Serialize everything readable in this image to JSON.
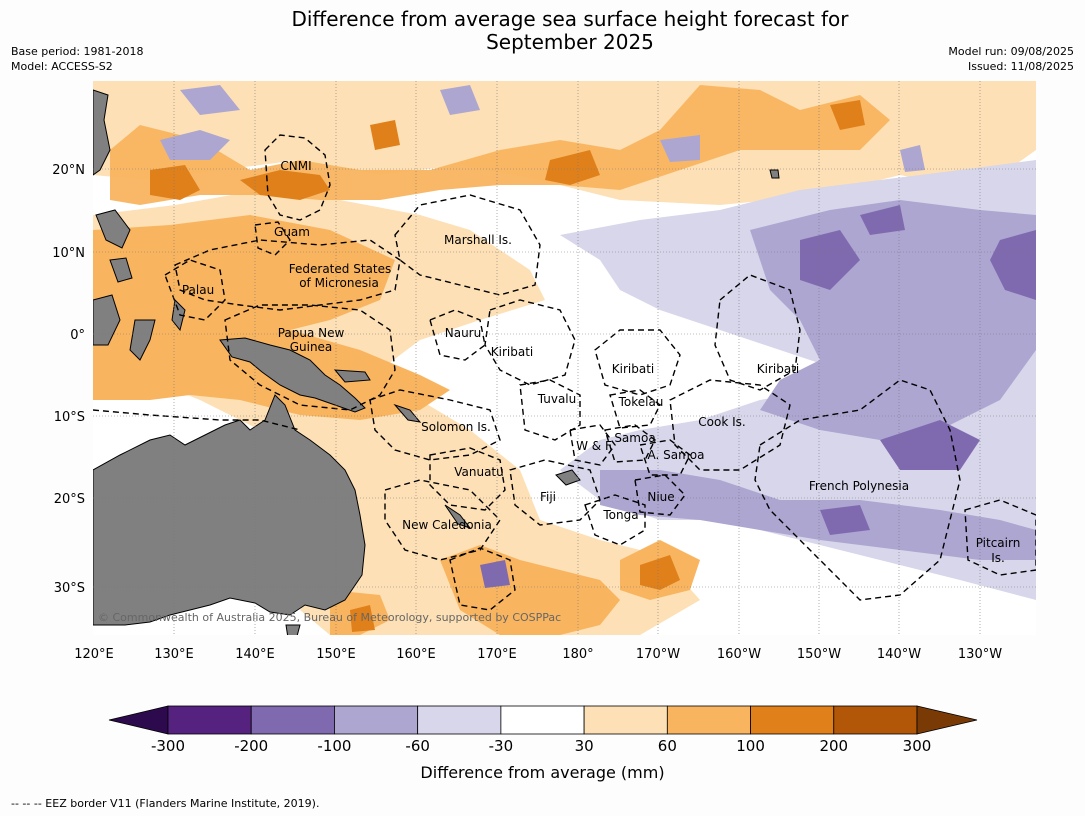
{
  "title": {
    "line1": "Difference from average sea surface height forecast for",
    "line2": "September 2025"
  },
  "meta_left": {
    "base_period": "Base period: 1981-2018",
    "model": "Model: ACCESS-S2"
  },
  "meta_right": {
    "model_run": "Model run: 09/08/2025",
    "issued": "Issued: 11/08/2025"
  },
  "map": {
    "lon_ticks": [
      "120°E",
      "130°E",
      "140°E",
      "150°E",
      "160°E",
      "170°E",
      "180°",
      "170°W",
      "160°W",
      "150°W",
      "140°W",
      "130°W"
    ],
    "lat_ticks": [
      "20°N",
      "10°N",
      "0°",
      "10°S",
      "20°S",
      "30°S"
    ],
    "copyright": "© Commonwealth of Australia 2025, Bureau of Meteorology, supported by COSPPac",
    "region_labels": [
      "CNMI",
      "Guam",
      "Marshall Is.",
      "Federated States",
      "of Micronesia",
      "Palau",
      "Papua New",
      "Guinea",
      "Nauru",
      "Kiribati",
      "Kiribati",
      "Kiribati",
      "Tuvalu",
      "Tokelau",
      "Solomon Is.",
      "W & F",
      "Samoa",
      "A. Samoa",
      "Cook Is.",
      "Vanuatu",
      "Fiji",
      "Niue",
      "Tonga",
      "French Polynesia",
      "New Caledonia",
      "Pitcairn",
      "Is."
    ]
  },
  "colorbar": {
    "ticks": [
      "-300",
      "-200",
      "-100",
      "-60",
      "-30",
      "30",
      "60",
      "100",
      "200",
      "300"
    ],
    "colors": [
      "#2d0a4e",
      "#55227f",
      "#7f6ab0",
      "#aca6d1",
      "#d7d6ea",
      "#ffffff",
      "#fde0b5",
      "#f9b45f",
      "#e0801a",
      "#b25708",
      "#7a3a06"
    ],
    "label": "Difference from average (mm)"
  },
  "footer": "--  --  -- EEZ border V11 (Flanders Marine Institute, 2019)."
}
